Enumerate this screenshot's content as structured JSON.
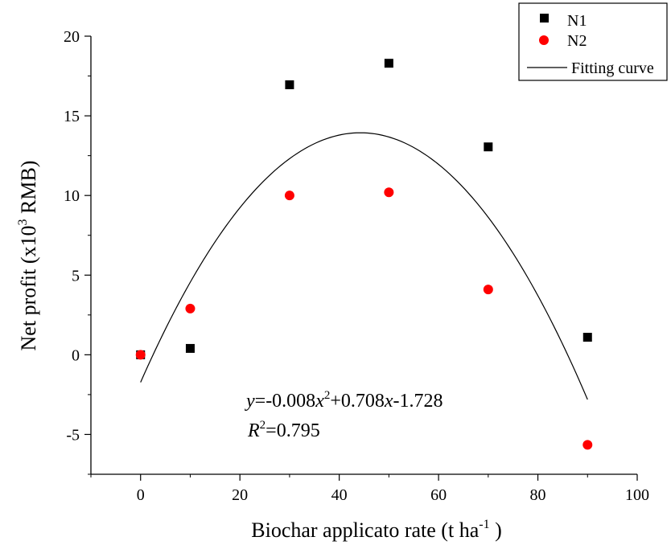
{
  "chart_data": {
    "type": "scatter",
    "xlabel": "Biochar applicato rate (t ha",
    "xlabel_sup": "-1",
    "xlabel_close": " )",
    "ylabel": "Net profit (x10",
    "ylabel_sup": "3",
    "ylabel_close": " RMB)",
    "xlim": [
      -10,
      100
    ],
    "ylim": [
      -7.5,
      20
    ],
    "xticks": [
      0,
      20,
      40,
      60,
      80,
      100
    ],
    "yticks": [
      -5,
      0,
      5,
      10,
      15,
      20
    ],
    "legend_position": "top-right",
    "series": [
      {
        "name": "N1",
        "marker": "square",
        "color": "#000000",
        "x": [
          0,
          10,
          30,
          50,
          70,
          90
        ],
        "y": [
          0,
          0.4,
          16.95,
          18.3,
          13.05,
          1.1
        ]
      },
      {
        "name": "N2",
        "marker": "circle",
        "color": "#ff0000",
        "x": [
          0,
          10,
          30,
          50,
          70,
          90
        ],
        "y": [
          0,
          2.9,
          10.0,
          10.2,
          4.1,
          -5.65
        ]
      }
    ],
    "fit": {
      "name": "Fitting curve",
      "a": -0.008,
      "b": 0.708,
      "c": -1.728,
      "x_range": [
        0,
        90
      ],
      "color": "#000000"
    },
    "annotation": {
      "eq": {
        "y": "y",
        "p1": "=-0.008",
        "x1": "x",
        "sup2": "2",
        "p2": "+0.708",
        "x2": "x",
        "p3": "-1.728"
      },
      "r2": {
        "r": "R",
        "sup": "2",
        "val": "=0.795"
      }
    }
  }
}
